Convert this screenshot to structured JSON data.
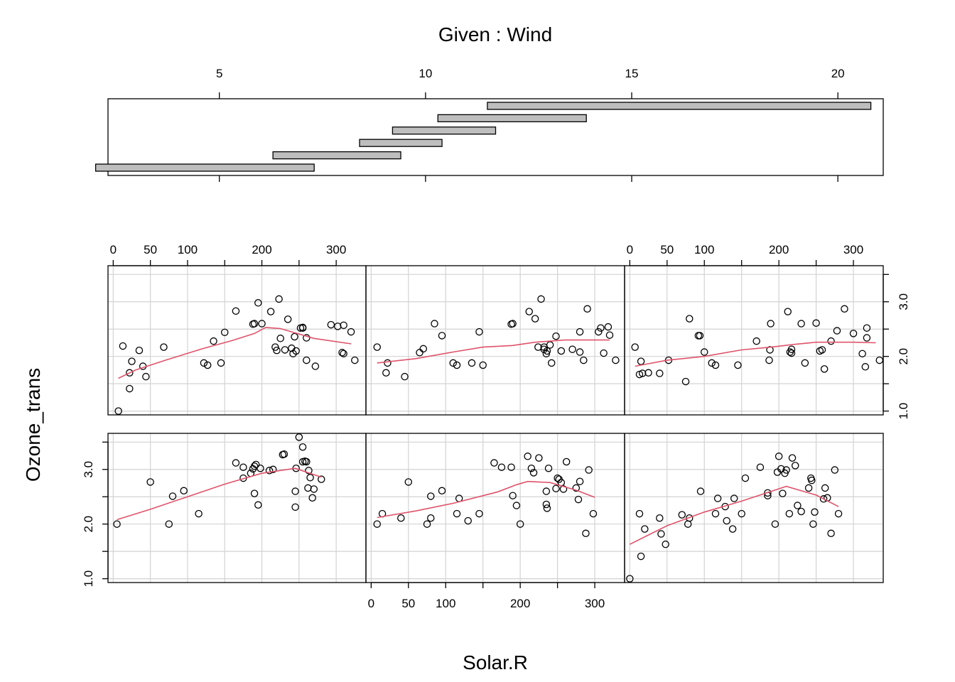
{
  "chart_data": {
    "type": "scatter",
    "variant": "coplot",
    "title": "Given : Wind",
    "xlabel": "Solar.R",
    "ylabel": "Ozone_trans",
    "given": {
      "variable": "Wind",
      "axis_range": [
        2.3,
        21.1
      ],
      "ticks": [
        5,
        10,
        15,
        20
      ],
      "tick_labels": [
        "5",
        "10",
        "15",
        "20"
      ],
      "intervals": [
        [
          2.0,
          7.3
        ],
        [
          6.3,
          9.4
        ],
        [
          8.4,
          10.4
        ],
        [
          9.2,
          11.7
        ],
        [
          10.3,
          13.9
        ],
        [
          11.5,
          20.8
        ]
      ]
    },
    "x_axis": {
      "range": [
        -7,
        340
      ],
      "ticks": [
        0,
        50,
        100,
        150,
        200,
        250,
        300
      ],
      "tick_labels": [
        "0",
        "50",
        "100",
        "",
        "200",
        "",
        "300"
      ],
      "grid": [
        0,
        50,
        100,
        150,
        200,
        250,
        300
      ]
    },
    "y_axis": {
      "range": [
        0.93,
        3.66
      ],
      "ticks": [
        1.0,
        1.5,
        2.0,
        2.5,
        3.0,
        3.5
      ],
      "tick_labels": [
        "1.0",
        "",
        "2.0",
        "",
        "3.0",
        ""
      ],
      "grid": [
        1.0,
        1.5,
        2.0,
        2.5,
        3.0,
        3.5
      ]
    },
    "panels": [
      {
        "name": "Wind interval 1",
        "points": [
          [
            5,
            2.0
          ],
          [
            50,
            2.77
          ],
          [
            75,
            2.0
          ],
          [
            80,
            2.51
          ],
          [
            95,
            2.61
          ],
          [
            115,
            2.19
          ],
          [
            165,
            3.12
          ],
          [
            175,
            2.84
          ],
          [
            175,
            3.04
          ],
          [
            185,
            2.93
          ],
          [
            188,
            3.01
          ],
          [
            190,
            2.56
          ],
          [
            190,
            3.06
          ],
          [
            192,
            3.09
          ],
          [
            195,
            2.35
          ],
          [
            198,
            3.02
          ],
          [
            210,
            2.98
          ],
          [
            215,
            3.0
          ],
          [
            228,
            3.27
          ],
          [
            230,
            3.28
          ],
          [
            245,
            2.6
          ],
          [
            245,
            2.31
          ],
          [
            246,
            3.02
          ],
          [
            250,
            3.59
          ],
          [
            255,
            3.41
          ],
          [
            255,
            3.14
          ],
          [
            258,
            3.15
          ],
          [
            260,
            3.14
          ],
          [
            262,
            2.66
          ],
          [
            263,
            2.98
          ],
          [
            265,
            2.85
          ],
          [
            268,
            2.48
          ],
          [
            270,
            2.64
          ],
          [
            280,
            2.82
          ]
        ],
        "smooth": [
          [
            5,
            2.08
          ],
          [
            50,
            2.27
          ],
          [
            100,
            2.5
          ],
          [
            150,
            2.73
          ],
          [
            200,
            2.93
          ],
          [
            245,
            3.02
          ],
          [
            262,
            2.94
          ],
          [
            280,
            2.86
          ]
        ]
      },
      {
        "name": "Wind interval 2",
        "points": [
          [
            8,
            2.0
          ],
          [
            15,
            2.19
          ],
          [
            40,
            2.11
          ],
          [
            50,
            2.77
          ],
          [
            75,
            2.0
          ],
          [
            80,
            2.11
          ],
          [
            80,
            2.51
          ],
          [
            95,
            2.61
          ],
          [
            115,
            2.19
          ],
          [
            118,
            2.47
          ],
          [
            130,
            2.06
          ],
          [
            145,
            2.19
          ],
          [
            165,
            3.12
          ],
          [
            175,
            3.04
          ],
          [
            188,
            3.04
          ],
          [
            190,
            2.52
          ],
          [
            195,
            2.34
          ],
          [
            200,
            2.0
          ],
          [
            210,
            3.24
          ],
          [
            215,
            3.02
          ],
          [
            218,
            2.94
          ],
          [
            225,
            3.21
          ],
          [
            235,
            2.36
          ],
          [
            235,
            2.6
          ],
          [
            236,
            2.29
          ],
          [
            238,
            3.02
          ],
          [
            248,
            2.65
          ],
          [
            250,
            2.84
          ],
          [
            252,
            2.82
          ],
          [
            255,
            2.76
          ],
          [
            258,
            2.64
          ],
          [
            262,
            3.14
          ],
          [
            275,
            2.66
          ],
          [
            278,
            2.45
          ],
          [
            280,
            2.78
          ],
          [
            288,
            1.83
          ],
          [
            292,
            2.99
          ],
          [
            298,
            2.19
          ]
        ],
        "smooth": [
          [
            8,
            2.12
          ],
          [
            60,
            2.24
          ],
          [
            110,
            2.38
          ],
          [
            170,
            2.59
          ],
          [
            195,
            2.72
          ],
          [
            210,
            2.78
          ],
          [
            240,
            2.76
          ],
          [
            275,
            2.62
          ],
          [
            300,
            2.49
          ]
        ]
      },
      {
        "name": "Wind interval 3",
        "points": [
          [
            0,
            1.0
          ],
          [
            13,
            2.19
          ],
          [
            15,
            1.41
          ],
          [
            20,
            1.91
          ],
          [
            40,
            2.11
          ],
          [
            42,
            1.82
          ],
          [
            48,
            1.63
          ],
          [
            70,
            2.17
          ],
          [
            78,
            2.0
          ],
          [
            80,
            2.11
          ],
          [
            95,
            2.6
          ],
          [
            115,
            2.19
          ],
          [
            118,
            2.47
          ],
          [
            128,
            2.32
          ],
          [
            130,
            2.06
          ],
          [
            138,
            1.91
          ],
          [
            140,
            2.47
          ],
          [
            150,
            2.19
          ],
          [
            155,
            2.84
          ],
          [
            175,
            3.04
          ],
          [
            185,
            2.52
          ],
          [
            185,
            2.57
          ],
          [
            195,
            2.0
          ],
          [
            198,
            2.95
          ],
          [
            200,
            3.24
          ],
          [
            203,
            3.01
          ],
          [
            205,
            2.56
          ],
          [
            208,
            2.93
          ],
          [
            210,
            2.99
          ],
          [
            214,
            2.19
          ],
          [
            218,
            3.21
          ],
          [
            222,
            3.07
          ],
          [
            225,
            2.34
          ],
          [
            230,
            2.23
          ],
          [
            240,
            2.66
          ],
          [
            243,
            2.84
          ],
          [
            244,
            2.8
          ],
          [
            246,
            2.0
          ],
          [
            248,
            2.22
          ],
          [
            260,
            2.46
          ],
          [
            262,
            2.66
          ],
          [
            265,
            2.48
          ],
          [
            270,
            1.83
          ],
          [
            275,
            2.99
          ],
          [
            280,
            2.19
          ]
        ],
        "smooth": [
          [
            0,
            1.63
          ],
          [
            50,
            1.97
          ],
          [
            100,
            2.22
          ],
          [
            150,
            2.42
          ],
          [
            190,
            2.6
          ],
          [
            210,
            2.69
          ],
          [
            250,
            2.53
          ],
          [
            280,
            2.32
          ]
        ]
      },
      {
        "name": "Wind interval 4",
        "points": [
          [
            7,
            1.0
          ],
          [
            13,
            2.19
          ],
          [
            22,
            1.7
          ],
          [
            22,
            1.41
          ],
          [
            25,
            1.91
          ],
          [
            35,
            2.11
          ],
          [
            40,
            1.82
          ],
          [
            44,
            1.63
          ],
          [
            68,
            2.17
          ],
          [
            122,
            1.88
          ],
          [
            127,
            1.84
          ],
          [
            135,
            2.28
          ],
          [
            145,
            1.88
          ],
          [
            150,
            2.44
          ],
          [
            165,
            2.83
          ],
          [
            188,
            2.59
          ],
          [
            190,
            2.6
          ],
          [
            195,
            2.98
          ],
          [
            200,
            2.6
          ],
          [
            212,
            2.82
          ],
          [
            218,
            2.17
          ],
          [
            220,
            2.11
          ],
          [
            223,
            3.05
          ],
          [
            225,
            2.33
          ],
          [
            231,
            2.12
          ],
          [
            235,
            2.68
          ],
          [
            240,
            2.15
          ],
          [
            242,
            2.05
          ],
          [
            244,
            2.36
          ],
          [
            246,
            2.1
          ],
          [
            252,
            2.52
          ],
          [
            255,
            2.52
          ],
          [
            255,
            2.53
          ],
          [
            260,
            1.93
          ],
          [
            260,
            2.34
          ],
          [
            272,
            1.82
          ],
          [
            293,
            2.58
          ],
          [
            302,
            2.55
          ],
          [
            308,
            2.07
          ],
          [
            310,
            2.57
          ],
          [
            320,
            2.45
          ],
          [
            310,
            2.05
          ],
          [
            325,
            1.93
          ]
        ],
        "smooth": [
          [
            7,
            1.6
          ],
          [
            30,
            1.75
          ],
          [
            70,
            1.93
          ],
          [
            120,
            2.14
          ],
          [
            160,
            2.29
          ],
          [
            190,
            2.42
          ],
          [
            205,
            2.53
          ],
          [
            225,
            2.51
          ],
          [
            270,
            2.33
          ],
          [
            320,
            2.23
          ]
        ]
      },
      {
        "name": "Wind interval 5",
        "points": [
          [
            8,
            2.17
          ],
          [
            20,
            1.7
          ],
          [
            22,
            1.88
          ],
          [
            45,
            1.63
          ],
          [
            65,
            2.07
          ],
          [
            70,
            2.14
          ],
          [
            85,
            2.6
          ],
          [
            95,
            2.38
          ],
          [
            110,
            1.88
          ],
          [
            115,
            1.84
          ],
          [
            135,
            1.88
          ],
          [
            145,
            2.45
          ],
          [
            150,
            1.84
          ],
          [
            188,
            2.59
          ],
          [
            190,
            2.6
          ],
          [
            212,
            2.82
          ],
          [
            220,
            2.69
          ],
          [
            224,
            2.17
          ],
          [
            228,
            3.05
          ],
          [
            232,
            2.17
          ],
          [
            232,
            2.13
          ],
          [
            235,
            2.05
          ],
          [
            236,
            2.1
          ],
          [
            240,
            2.21
          ],
          [
            242,
            1.88
          ],
          [
            248,
            2.37
          ],
          [
            255,
            2.1
          ],
          [
            270,
            2.13
          ],
          [
            280,
            2.08
          ],
          [
            280,
            2.45
          ],
          [
            285,
            1.93
          ],
          [
            290,
            2.87
          ],
          [
            305,
            2.45
          ],
          [
            308,
            2.52
          ],
          [
            312,
            2.06
          ],
          [
            318,
            2.54
          ],
          [
            320,
            2.39
          ],
          [
            328,
            1.93
          ]
        ],
        "smooth": [
          [
            8,
            1.88
          ],
          [
            60,
            1.96
          ],
          [
            110,
            2.08
          ],
          [
            150,
            2.17
          ],
          [
            190,
            2.2
          ],
          [
            220,
            2.26
          ],
          [
            260,
            2.3
          ],
          [
            300,
            2.3
          ],
          [
            320,
            2.3
          ]
        ]
      },
      {
        "name": "Wind interval 6",
        "points": [
          [
            7,
            2.17
          ],
          [
            13,
            1.67
          ],
          [
            15,
            1.91
          ],
          [
            17,
            1.69
          ],
          [
            25,
            1.7
          ],
          [
            40,
            1.69
          ],
          [
            52,
            1.93
          ],
          [
            75,
            1.54
          ],
          [
            80,
            2.69
          ],
          [
            92,
            2.38
          ],
          [
            94,
            2.38
          ],
          [
            100,
            2.08
          ],
          [
            110,
            1.88
          ],
          [
            115,
            1.84
          ],
          [
            145,
            1.84
          ],
          [
            170,
            2.28
          ],
          [
            187,
            1.93
          ],
          [
            188,
            2.12
          ],
          [
            189,
            2.6
          ],
          [
            212,
            2.82
          ],
          [
            215,
            2.08
          ],
          [
            217,
            2.13
          ],
          [
            217,
            2.06
          ],
          [
            230,
            2.6
          ],
          [
            235,
            1.88
          ],
          [
            250,
            2.61
          ],
          [
            255,
            2.1
          ],
          [
            258,
            2.12
          ],
          [
            261,
            1.77
          ],
          [
            270,
            2.28
          ],
          [
            278,
            2.47
          ],
          [
            288,
            2.87
          ],
          [
            300,
            2.42
          ],
          [
            312,
            2.05
          ],
          [
            316,
            1.81
          ],
          [
            318,
            2.34
          ],
          [
            318,
            2.52
          ],
          [
            335,
            1.93
          ]
        ],
        "smooth": [
          [
            7,
            1.82
          ],
          [
            50,
            1.93
          ],
          [
            100,
            2.0
          ],
          [
            150,
            2.12
          ],
          [
            190,
            2.17
          ],
          [
            220,
            2.22
          ],
          [
            250,
            2.26
          ],
          [
            300,
            2.26
          ],
          [
            330,
            2.25
          ]
        ]
      }
    ]
  }
}
